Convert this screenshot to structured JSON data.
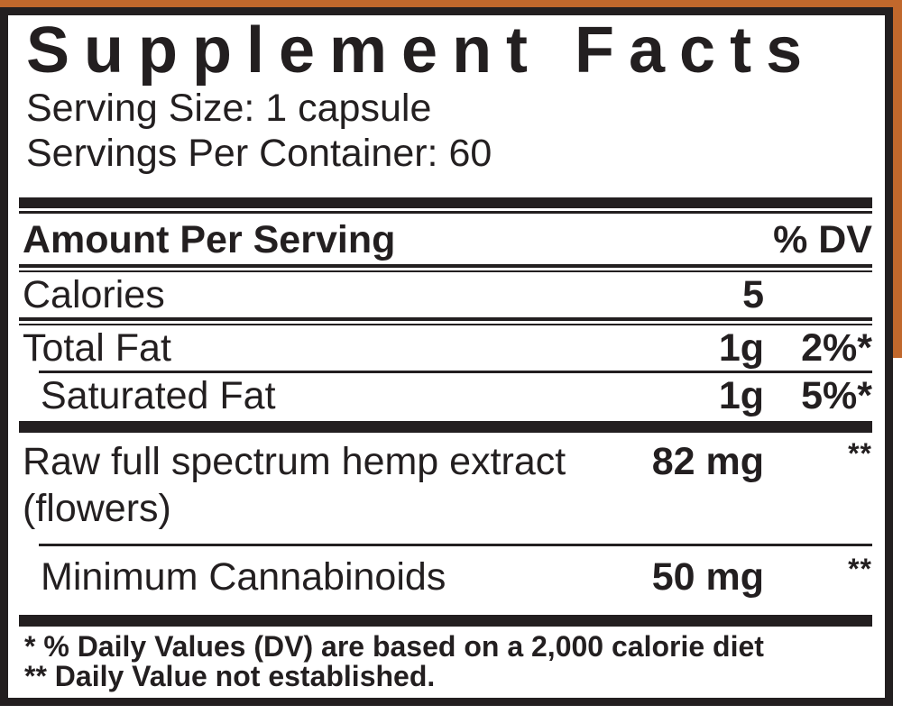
{
  "label": {
    "title": "Supplement Facts",
    "serving_size": "Serving Size: 1 capsule",
    "servings_per_container": "Servings Per Container: 60",
    "header": {
      "name": "Amount Per Serving",
      "dv": "% DV"
    },
    "rows": [
      {
        "name": "Calories",
        "amount": "5",
        "dv": ""
      },
      {
        "name": "Total Fat",
        "amount": "1g",
        "dv": "2%*"
      },
      {
        "name": "Saturated Fat",
        "amount": "1g",
        "dv": "5%*"
      },
      {
        "name": "Raw full spectrum hemp extract",
        "name2": "(flowers)",
        "amount": "82 mg",
        "dv": "**"
      },
      {
        "name": "Minimum Cannabinoids",
        "amount": "50 mg",
        "dv": "**"
      }
    ],
    "footnotes": [
      "* % Daily Values (DV) are based on a 2,000 calorie diet",
      "** Daily Value not established."
    ],
    "colors": {
      "accent_orange": "#C1682C",
      "ink_black": "#231F20"
    }
  }
}
